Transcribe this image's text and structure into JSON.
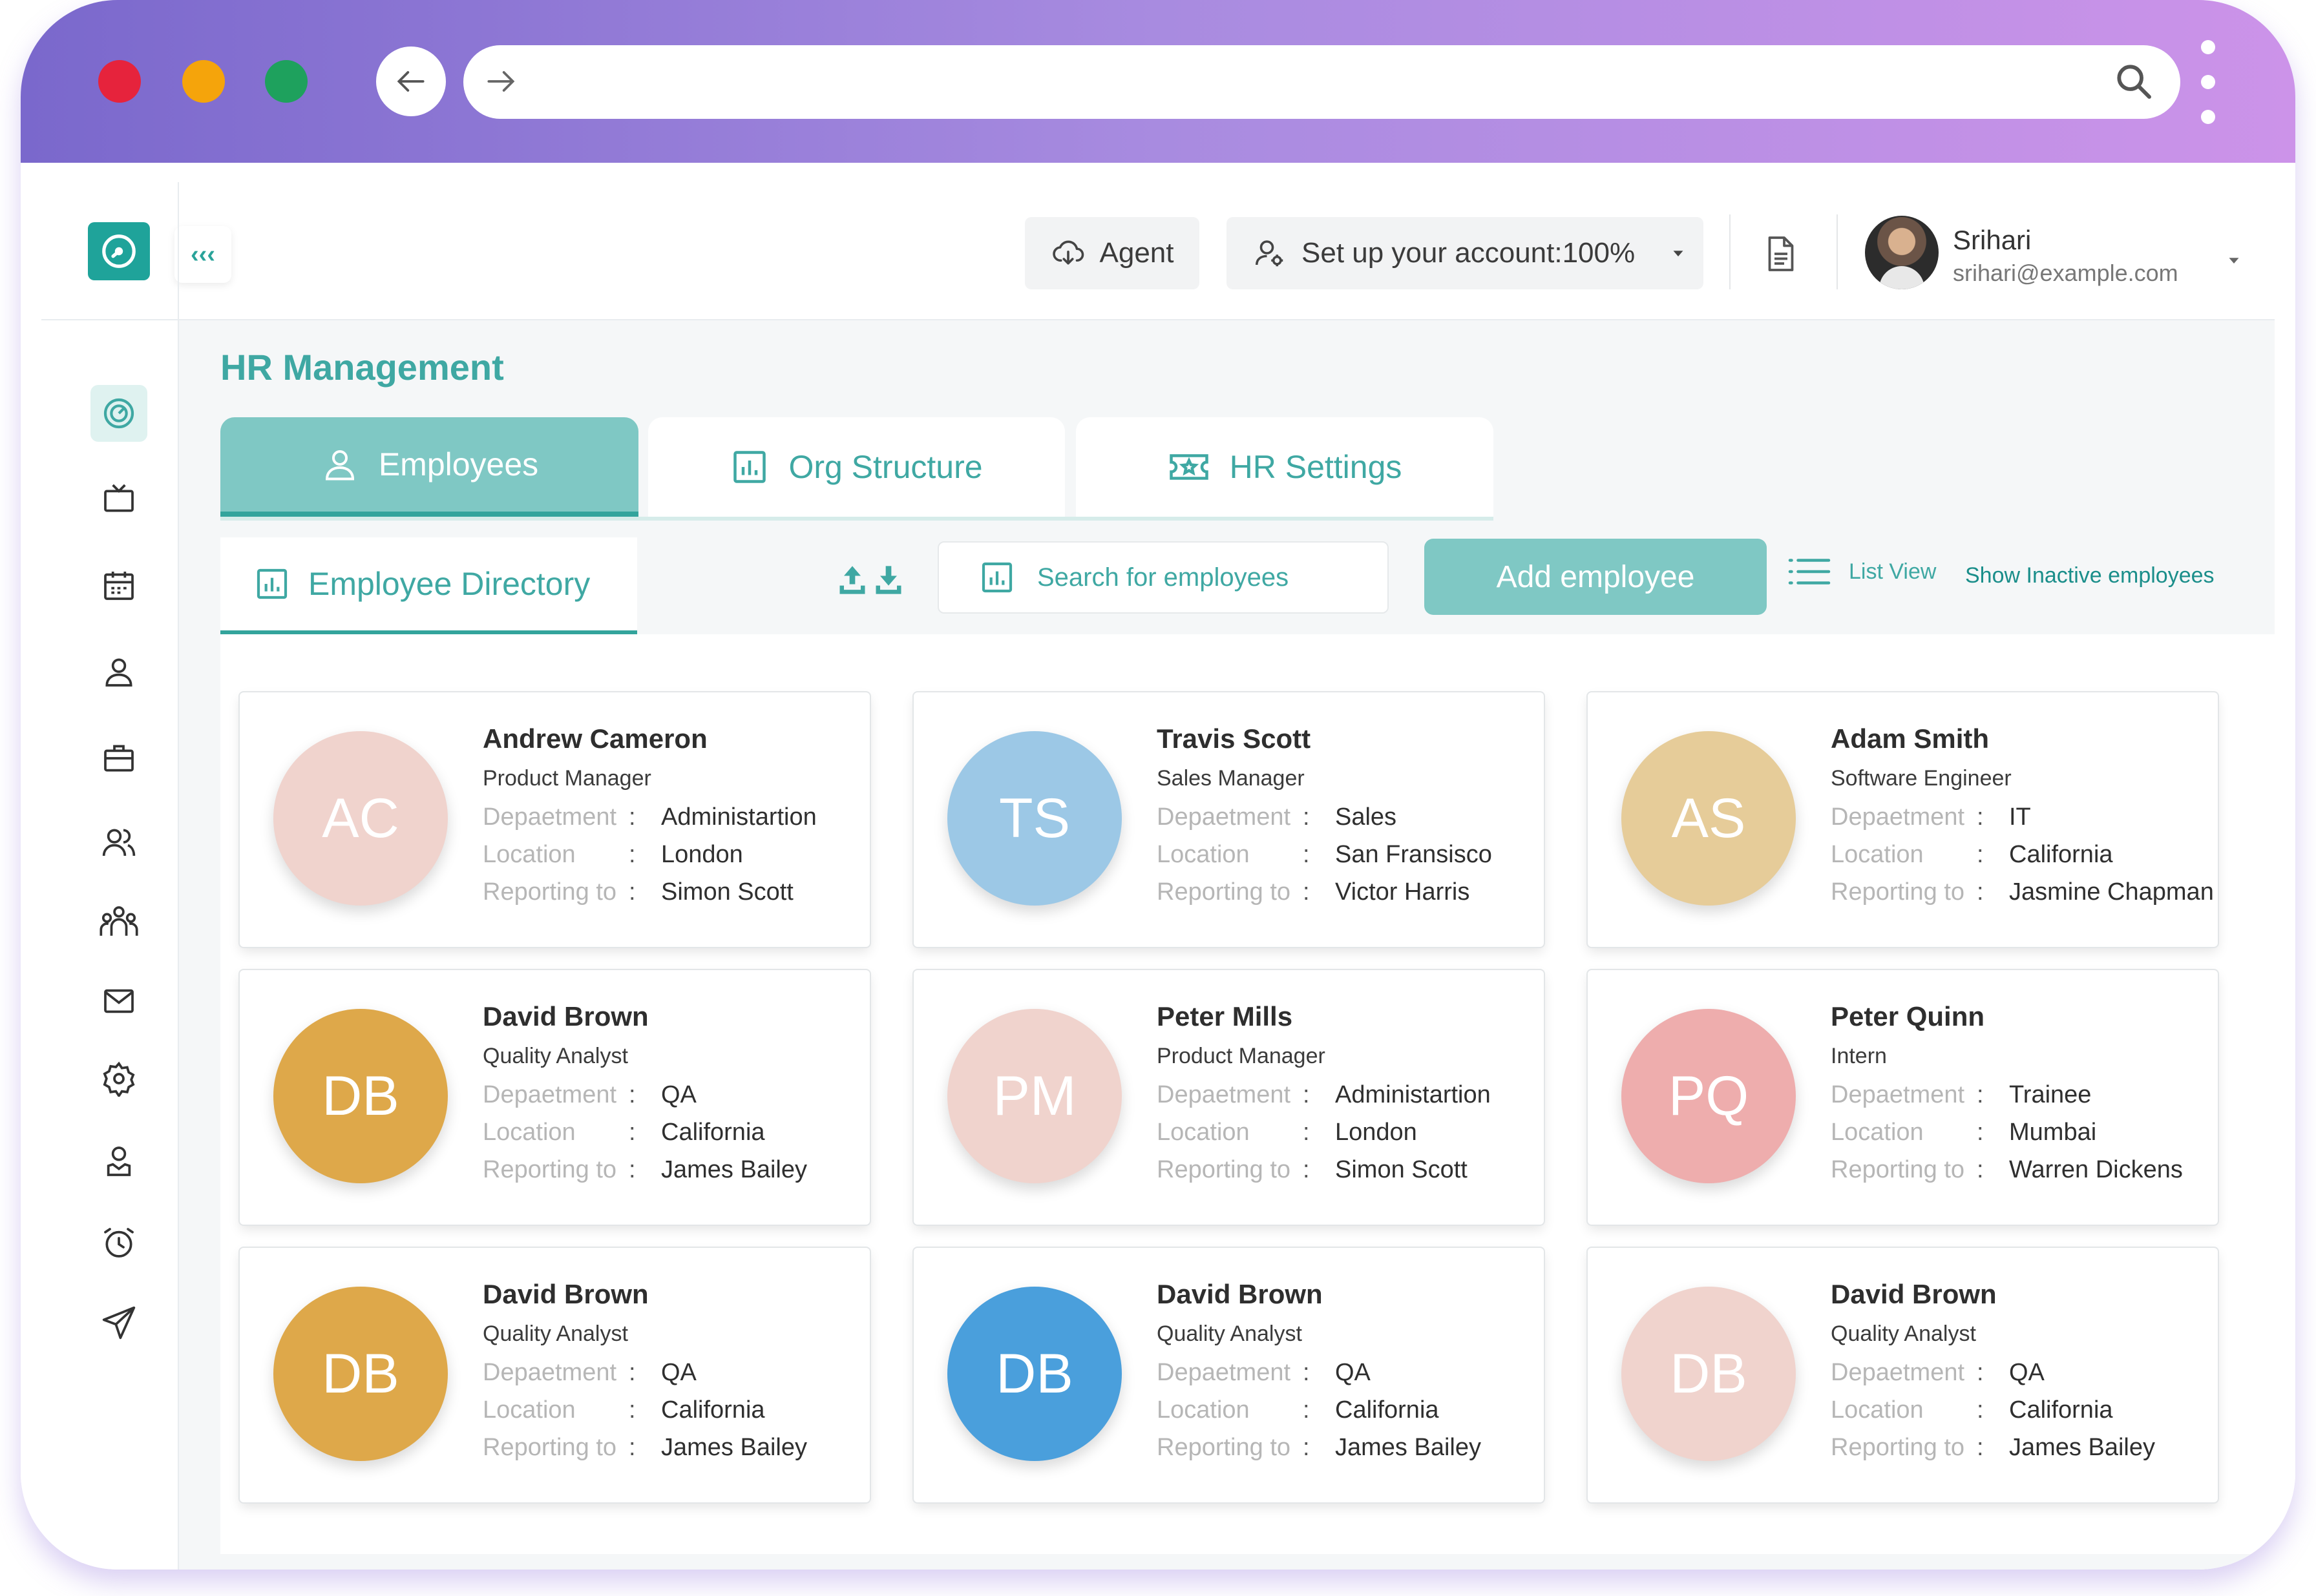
{
  "header": {
    "agent_label": "Agent",
    "setup_label": "Set up your account:100%",
    "user_name": "Srihari",
    "user_email": "srihari@example.com"
  },
  "page": {
    "title": "HR Management"
  },
  "tabs": [
    {
      "label": "Employees",
      "active": true
    },
    {
      "label": "Org Structure",
      "active": false
    },
    {
      "label": "HR Settings",
      "active": false
    }
  ],
  "toolbar": {
    "subtab_label": "Employee Directory",
    "search_placeholder": "Search for employees",
    "add_label": "Add employee",
    "list_view_label": "List View",
    "inactive_label": "Show Inactive employees"
  },
  "field_labels": {
    "department": "Depaetment",
    "location": "Location",
    "reporting": "Reporting to",
    "sep": ":"
  },
  "employees": [
    {
      "initials": "AC",
      "color": "#f0d3cd",
      "name": "Andrew Cameron",
      "role": "Product Manager",
      "department": "Administartion",
      "location": "London",
      "reporting": "Simon Scott"
    },
    {
      "initials": "TS",
      "color": "#9cc8e6",
      "name": "Travis Scott",
      "role": "Sales Manager",
      "department": "Sales",
      "location": "San Fransisco",
      "reporting": "Victor Harris"
    },
    {
      "initials": "AS",
      "color": "#e6cc99",
      "name": "Adam Smith",
      "role": "Software Engineer",
      "department": "IT",
      "location": "California",
      "reporting": "Jasmine Chapman"
    },
    {
      "initials": "DB",
      "color": "#dea84a",
      "name": "David Brown",
      "role": "Quality Analyst",
      "department": "QA",
      "location": "California",
      "reporting": "James Bailey"
    },
    {
      "initials": "PM",
      "color": "#f0d3cd",
      "name": "Peter Mills",
      "role": "Product Manager",
      "department": "Administartion",
      "location": "London",
      "reporting": "Simon Scott"
    },
    {
      "initials": "PQ",
      "color": "#eeadad",
      "name": "Peter Quinn",
      "role": "Intern",
      "department": "Trainee",
      "location": "Mumbai",
      "reporting": "Warren Dickens"
    },
    {
      "initials": "DB",
      "color": "#dea84a",
      "name": "David Brown",
      "role": "Quality Analyst",
      "department": "QA",
      "location": "California",
      "reporting": "James Bailey"
    },
    {
      "initials": "DB",
      "color": "#4a9fdc",
      "name": "David Brown",
      "role": "Quality Analyst",
      "department": "QA",
      "location": "California",
      "reporting": "James Bailey"
    },
    {
      "initials": "DB",
      "color": "#f0d3cd",
      "name": "David Brown",
      "role": "Quality Analyst",
      "department": "QA",
      "location": "California",
      "reporting": "James Bailey"
    }
  ],
  "icons": {
    "sidebar": [
      "dashboard-icon",
      "tv-icon",
      "calendar-icon",
      "user-icon",
      "briefcase-icon",
      "users-icon",
      "team-icon",
      "mail-icon",
      "settings-icon",
      "profile-icon",
      "alarm-icon",
      "send-icon"
    ]
  },
  "colors": {
    "accent": "#3fa8a3",
    "accent_fill": "#7fc8c4",
    "chrome_start": "#7a68cc",
    "chrome_end": "#cc93e9"
  }
}
